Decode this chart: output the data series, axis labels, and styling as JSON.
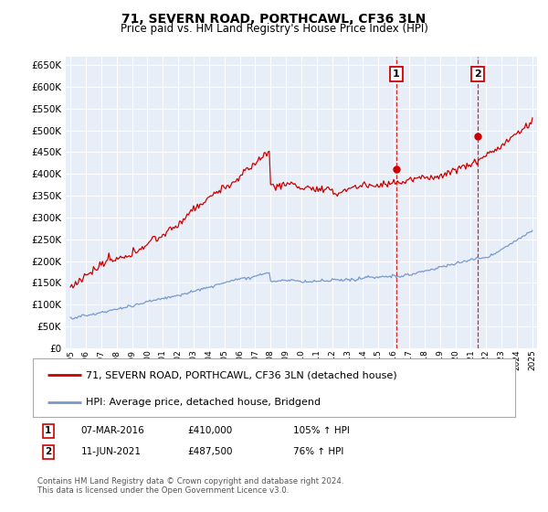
{
  "title": "71, SEVERN ROAD, PORTHCAWL, CF36 3LN",
  "subtitle": "Price paid vs. HM Land Registry's House Price Index (HPI)",
  "yticks": [
    0,
    50000,
    100000,
    150000,
    200000,
    250000,
    300000,
    350000,
    400000,
    450000,
    500000,
    550000,
    600000,
    650000
  ],
  "ylim": [
    0,
    670000
  ],
  "sale1": {
    "t": 21.17,
    "value": 410000,
    "label": "1"
  },
  "sale2": {
    "t": 26.45,
    "value": 487500,
    "label": "2"
  },
  "red_color": "#cc0000",
  "blue_color": "#7799cc",
  "legend1": "71, SEVERN ROAD, PORTHCAWL, CF36 3LN (detached house)",
  "legend2": "HPI: Average price, detached house, Bridgend",
  "table_row1": [
    "1",
    "07-MAR-2016",
    "£410,000",
    "105% ↑ HPI"
  ],
  "table_row2": [
    "2",
    "11-JUN-2021",
    "£487,500",
    "76% ↑ HPI"
  ],
  "footnote": "Contains HM Land Registry data © Crown copyright and database right 2024.\nThis data is licensed under the Open Government Licence v3.0.",
  "plot_bg": "#e8eef8",
  "fig_bg": "#ffffff"
}
